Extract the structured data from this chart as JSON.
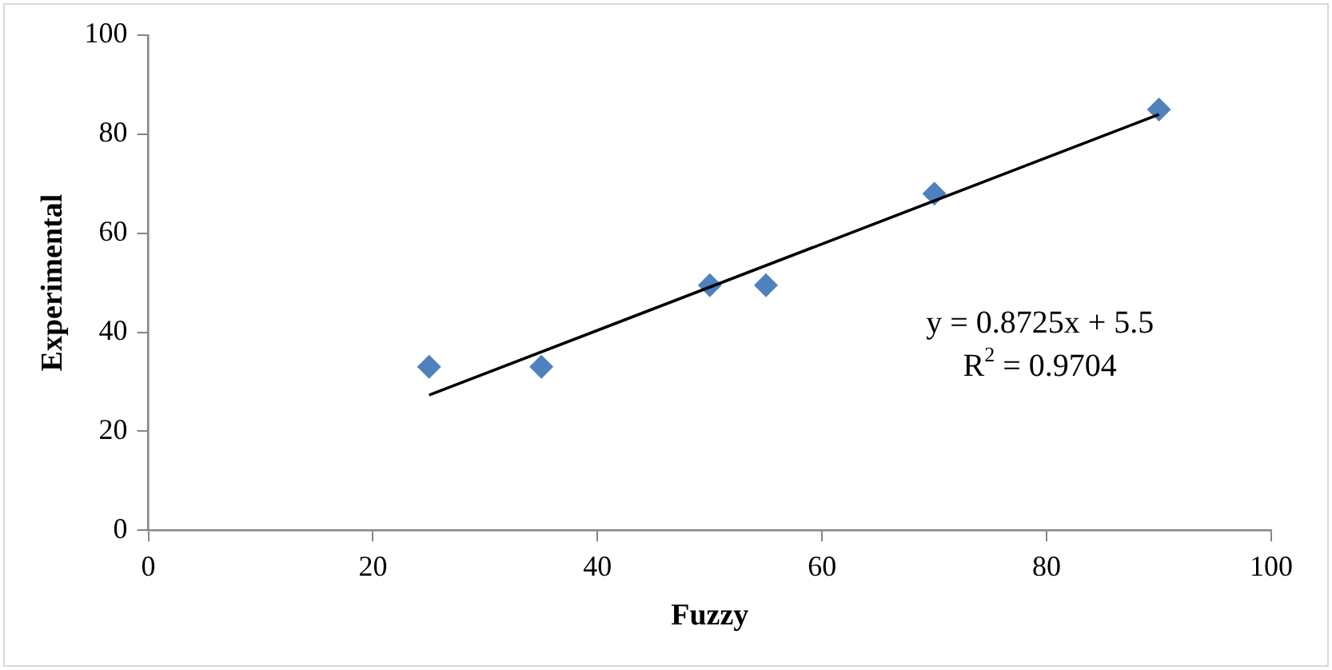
{
  "chart_data": {
    "type": "scatter",
    "xlabel": "Fuzzy",
    "ylabel": "Experimental",
    "marker": "diamond",
    "grid": false,
    "legend": false,
    "xlim": [
      0,
      100
    ],
    "xticks": [
      0,
      20,
      40,
      60,
      80,
      100
    ],
    "ylim": [
      0,
      100
    ],
    "yticks": [
      0,
      20,
      40,
      60,
      80,
      100
    ],
    "series": [
      {
        "color": "#4f81bd",
        "x": [
          25,
          35,
          50,
          55,
          70,
          90
        ],
        "values": [
          33,
          33,
          49.5,
          49.5,
          68,
          85
        ]
      },
      {
        "type": "line",
        "color": "#000000",
        "marker": "none",
        "x": [
          25,
          90
        ],
        "values": [
          27.3,
          84
        ]
      }
    ],
    "annotations": [
      "y = 0.8725x + 5.5",
      "R$^{2}$ = 0.9704"
    ]
  }
}
